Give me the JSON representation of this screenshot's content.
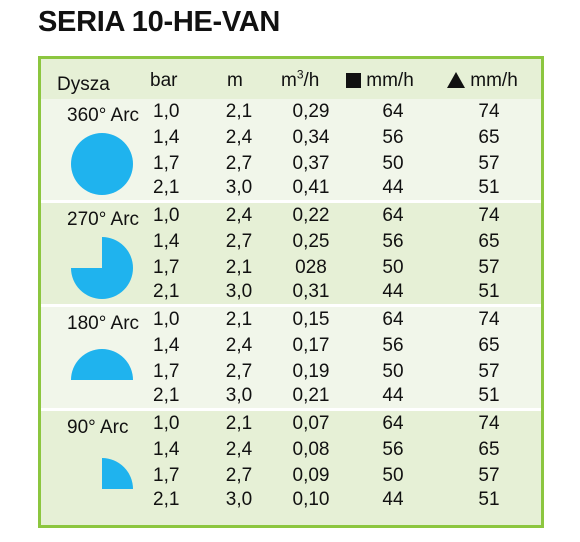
{
  "title": "SERIA 10-HE-VAN",
  "header": {
    "nozzle": "Dysza",
    "bar": "bar",
    "m": "m",
    "flow_base": "m",
    "flow_sup": "3",
    "flow_tail": "/h",
    "square_rate": "mm/h",
    "triangle_rate": "mm/h",
    "square_icon": "square-icon",
    "triangle_icon": "triangle-icon"
  },
  "accent_color": "#8cc63f",
  "shape_color": "#1fb3ee",
  "groups": [
    {
      "label": "360° Arc",
      "arc_degrees": 360,
      "rows": [
        {
          "bar": "1,0",
          "m": "2,1",
          "q": "0,29",
          "sq": "64",
          "tr": "74"
        },
        {
          "bar": "1,4",
          "m": "2,4",
          "q": "0,34",
          "sq": "56",
          "tr": "65"
        },
        {
          "bar": "1,7",
          "m": "2,7",
          "q": "0,37",
          "sq": "50",
          "tr": "57"
        },
        {
          "bar": "2,1",
          "m": "3,0",
          "q": "0,41",
          "sq": "44",
          "tr": "51"
        }
      ]
    },
    {
      "label": "270° Arc",
      "arc_degrees": 270,
      "rows": [
        {
          "bar": "1,0",
          "m": "2,4",
          "q": "0,22",
          "sq": "64",
          "tr": "74"
        },
        {
          "bar": "1,4",
          "m": "2,7",
          "q": "0,25",
          "sq": "56",
          "tr": "65"
        },
        {
          "bar": "1,7",
          "m": "2,1",
          "q": "028",
          "sq": "50",
          "tr": "57"
        },
        {
          "bar": "2,1",
          "m": "3,0",
          "q": "0,31",
          "sq": "44",
          "tr": "51"
        }
      ]
    },
    {
      "label": "180° Arc",
      "arc_degrees": 180,
      "rows": [
        {
          "bar": "1,0",
          "m": "2,1",
          "q": "0,15",
          "sq": "64",
          "tr": "74"
        },
        {
          "bar": "1,4",
          "m": "2,4",
          "q": "0,17",
          "sq": "56",
          "tr": "65"
        },
        {
          "bar": "1,7",
          "m": "2,7",
          "q": "0,19",
          "sq": "50",
          "tr": "57"
        },
        {
          "bar": "2,1",
          "m": "3,0",
          "q": "0,21",
          "sq": "44",
          "tr": "51"
        }
      ]
    },
    {
      "label": "90° Arc",
      "arc_degrees": 90,
      "rows": [
        {
          "bar": "1,0",
          "m": "2,1",
          "q": "0,07",
          "sq": "64",
          "tr": "74"
        },
        {
          "bar": "1,4",
          "m": "2,4",
          "q": "0,08",
          "sq": "56",
          "tr": "65"
        },
        {
          "bar": "1,7",
          "m": "2,7",
          "q": "0,09",
          "sq": "50",
          "tr": "57"
        },
        {
          "bar": "2,1",
          "m": "3,0",
          "q": "0,10",
          "sq": "44",
          "tr": "51"
        }
      ]
    }
  ]
}
